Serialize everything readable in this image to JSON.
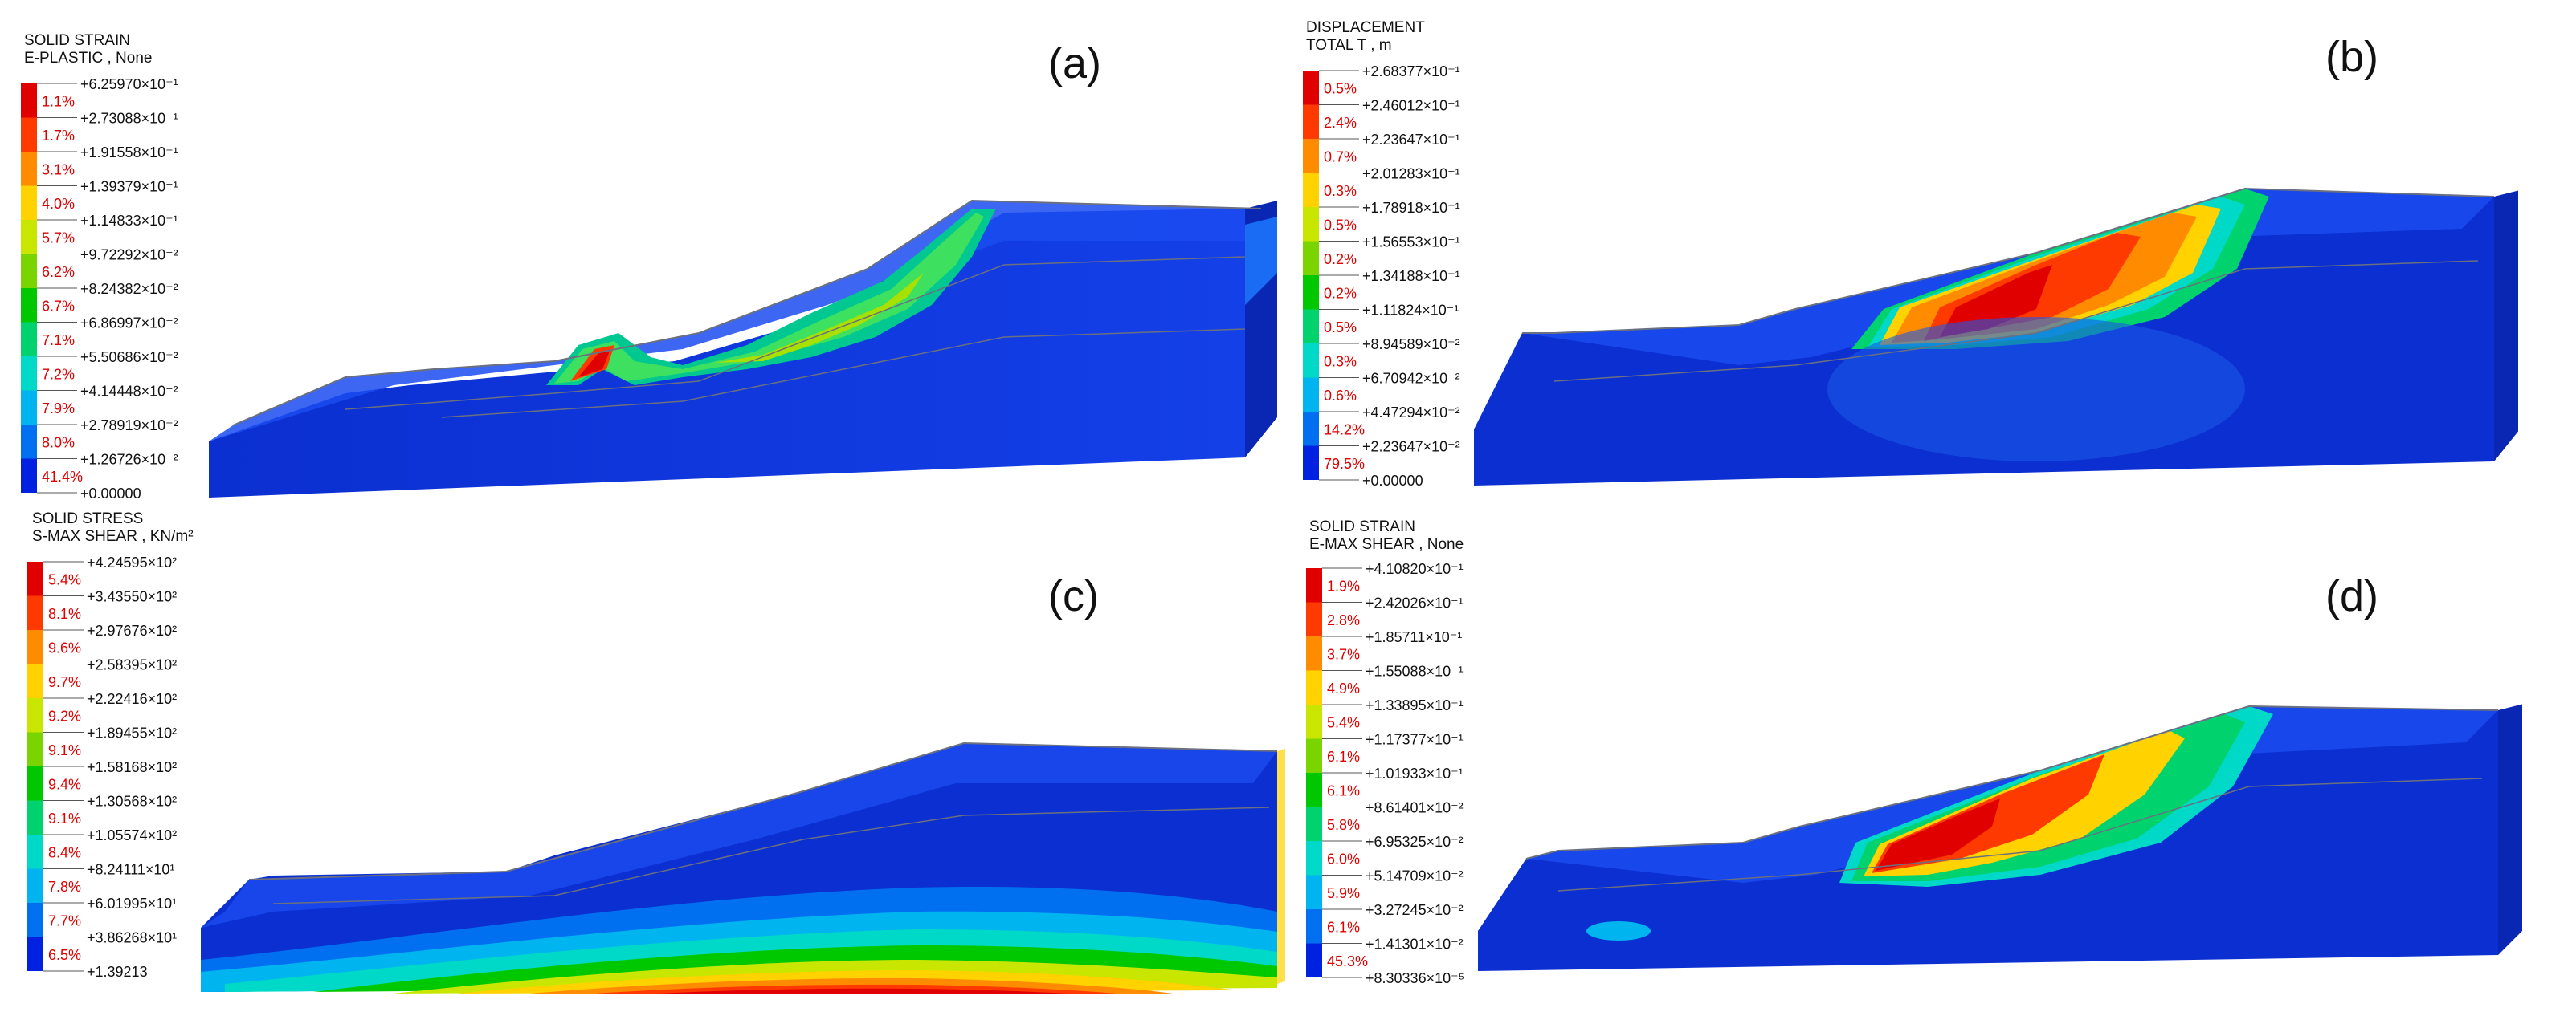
{
  "panels": [
    {
      "tag": "(a)",
      "title1": "SOLID STRAIN",
      "title2": "E-PLASTIC , None",
      "levels": [
        "+6.25970×10⁻¹",
        "+2.73088×10⁻¹",
        "+1.91558×10⁻¹",
        "+1.39379×10⁻¹",
        "+1.14833×10⁻¹",
        "+9.72292×10⁻²",
        "+8.24382×10⁻²",
        "+6.86997×10⁻²",
        "+5.50686×10⁻²",
        "+4.14448×10⁻²",
        "+2.78919×10⁻²",
        "+1.26726×10⁻²",
        "+0.00000"
      ],
      "percents": [
        "1.1%",
        "1.7%",
        "3.1%",
        "4.0%",
        "5.7%",
        "6.2%",
        "6.7%",
        "7.1%",
        "7.2%",
        "7.9%",
        "8.0%",
        "41.4%"
      ]
    },
    {
      "tag": "(b)",
      "title1": "DISPLACEMENT",
      "title2": "TOTAL T , m",
      "levels": [
        "+2.68377×10⁻¹",
        "+2.46012×10⁻¹",
        "+2.23647×10⁻¹",
        "+2.01283×10⁻¹",
        "+1.78918×10⁻¹",
        "+1.56553×10⁻¹",
        "+1.34188×10⁻¹",
        "+1.11824×10⁻¹",
        "+8.94589×10⁻²",
        "+6.70942×10⁻²",
        "+4.47294×10⁻²",
        "+2.23647×10⁻²",
        "+0.00000"
      ],
      "percents": [
        "0.5%",
        "2.4%",
        "0.7%",
        "0.3%",
        "0.5%",
        "0.2%",
        "0.2%",
        "0.5%",
        "0.3%",
        "0.6%",
        "14.2%",
        "79.5%"
      ]
    },
    {
      "tag": "(c)",
      "title1": "SOLID STRESS",
      "title2": "S-MAX SHEAR , KN/m²",
      "levels": [
        "+4.24595×10²",
        "+3.43550×10²",
        "+2.97676×10²",
        "+2.58395×10²",
        "+2.22416×10²",
        "+1.89455×10²",
        "+1.58168×10²",
        "+1.30568×10²",
        "+1.05574×10²",
        "+8.24111×10¹",
        "+6.01995×10¹",
        "+3.86268×10¹",
        "+1.39213"
      ],
      "percents": [
        "5.4%",
        "8.1%",
        "9.6%",
        "9.7%",
        "9.2%",
        "9.1%",
        "9.4%",
        "9.1%",
        "8.4%",
        "7.8%",
        "7.7%",
        "6.5%"
      ]
    },
    {
      "tag": "(d)",
      "title1": "SOLID STRAIN",
      "title2": "E-MAX SHEAR , None",
      "levels": [
        "+4.10820×10⁻¹",
        "+2.42026×10⁻¹",
        "+1.85711×10⁻¹",
        "+1.55088×10⁻¹",
        "+1.33895×10⁻¹",
        "+1.17377×10⁻¹",
        "+1.01933×10⁻¹",
        "+8.61401×10⁻²",
        "+6.95325×10⁻²",
        "+5.14709×10⁻²",
        "+3.27245×10⁻²",
        "+1.41301×10⁻²",
        "+8.30336×10⁻⁵"
      ],
      "percents": [
        "1.9%",
        "2.8%",
        "3.7%",
        "4.9%",
        "5.4%",
        "6.1%",
        "6.1%",
        "5.8%",
        "6.0%",
        "5.9%",
        "6.1%",
        "45.3%"
      ]
    }
  ],
  "colors": {
    "scale": [
      "#e00000",
      "#ff3a00",
      "#ff8c00",
      "#ffd200",
      "#c8e600",
      "#7ad400",
      "#00c800",
      "#00d26e",
      "#00d8c8",
      "#00b4f0",
      "#0070f0",
      "#0022e0"
    ],
    "pct_text": "#e00000",
    "model_base": "#0b2fd0",
    "model_top": "#1b4cf0",
    "model_side": "#0a27b4"
  }
}
